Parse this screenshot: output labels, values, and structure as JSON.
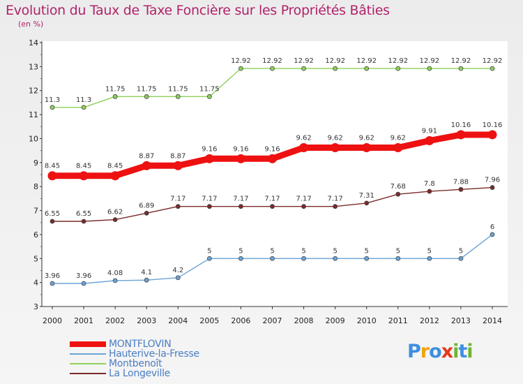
{
  "header": {
    "title": "Evolution du Taux de Taxe Foncière sur les Propriétés Bâties",
    "subtitle": "(en %)"
  },
  "logo": {
    "text": "Proxiti",
    "letters": [
      "P",
      "r",
      "o",
      "x",
      "i",
      "t",
      "i"
    ],
    "colors": [
      "#3d8fe0",
      "#f2a20c",
      "#3d8fe0",
      "#e8361c",
      "#6fb52f",
      "#3d8fe0",
      "#6fb52f"
    ]
  },
  "chart_data": {
    "type": "line",
    "title": "Evolution du Taux de Taxe Foncière sur les Propriétés Bâties",
    "ylabel": "(en %)",
    "xlabel": "",
    "x": [
      "2000",
      "2001",
      "2002",
      "2003",
      "2004",
      "2005",
      "2006",
      "2007",
      "2008",
      "2009",
      "2010",
      "2011",
      "2012",
      "2013",
      "2014"
    ],
    "ylim": [
      3,
      14
    ],
    "yticks": [
      "3",
      "4",
      "5",
      "6",
      "7",
      "8",
      "9",
      "10",
      "11",
      "12",
      "13",
      "14"
    ],
    "grid": false,
    "legend": "bottom-left",
    "series": [
      {
        "name": "MONTFLOVIN",
        "color": "#ee1111",
        "values": [
          8.45,
          8.45,
          8.45,
          8.87,
          8.87,
          9.16,
          9.16,
          9.16,
          9.62,
          9.62,
          9.62,
          9.62,
          9.91,
          10.16,
          10.16
        ],
        "labels": [
          "8.45",
          "8.45",
          "8.45",
          "8.87",
          "8.87",
          "9.16",
          "9.16",
          "9.16",
          "9.62",
          "9.62",
          "9.62",
          "9.62",
          "9.91",
          "10.16",
          "10.16"
        ]
      },
      {
        "name": "Hauterive-la-Fresse",
        "color": "#6aa3d6",
        "values": [
          3.96,
          3.96,
          4.08,
          4.1,
          4.2,
          5,
          5,
          5,
          5,
          5,
          5,
          5,
          5,
          5,
          6
        ],
        "labels": [
          "3.96",
          "3.96",
          "4.08",
          "4.1",
          "4.2",
          "5",
          "5",
          "5",
          "5",
          "5",
          "5",
          "5",
          "5",
          "5",
          "6"
        ]
      },
      {
        "name": "Montbenoît",
        "color": "#8ed05a",
        "values": [
          11.3,
          11.3,
          11.75,
          11.75,
          11.75,
          11.75,
          12.92,
          12.92,
          12.92,
          12.92,
          12.92,
          12.92,
          12.92,
          12.92,
          12.92
        ],
        "labels": [
          "11.3",
          "11.3",
          "11.75",
          "11.75",
          "11.75",
          "11.75",
          "12.92",
          "12.92",
          "12.92",
          "12.92",
          "12.92",
          "12.92",
          "12.92",
          "12.92",
          "12.92"
        ]
      },
      {
        "name": "La Longeville",
        "color": "#7a2a2a",
        "values": [
          6.55,
          6.55,
          6.62,
          6.89,
          7.17,
          7.17,
          7.17,
          7.17,
          7.17,
          7.17,
          7.31,
          7.68,
          7.8,
          7.88,
          7.96
        ],
        "labels": [
          "6.55",
          "6.55",
          "6.62",
          "6.89",
          "7.17",
          "7.17",
          "7.17",
          "7.17",
          "7.17",
          "7.17",
          "7.31",
          "7.68",
          "7.8",
          "7.88",
          "7.96"
        ]
      }
    ]
  }
}
